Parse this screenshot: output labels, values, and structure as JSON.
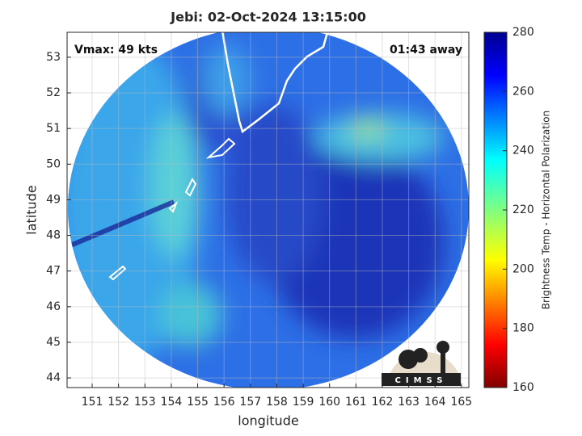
{
  "chart_data": {
    "type": "image",
    "title": "Jebi: 02-Oct-2024 13:15:00",
    "annotations": [
      "Vmax: 49 kts",
      "01:43 away"
    ],
    "xlabel": "longitude",
    "ylabel": "latitude",
    "xlim": [
      150.05,
      165.28
    ],
    "xticks": [
      151,
      152,
      153,
      154,
      155,
      156,
      157,
      158,
      159,
      160,
      161,
      162,
      163,
      164,
      165
    ],
    "ylim": [
      43.73,
      53.7
    ],
    "yticks": [
      44,
      45,
      46,
      47,
      48,
      49,
      50,
      51,
      52,
      53
    ],
    "grid": true,
    "colorbar": {
      "label": "Brightness Temp - Horizontal Polarization",
      "lim": [
        160,
        280
      ],
      "ticks": [
        160,
        180,
        200,
        220,
        240,
        260,
        280
      ]
    },
    "logo": "CIMSS"
  }
}
